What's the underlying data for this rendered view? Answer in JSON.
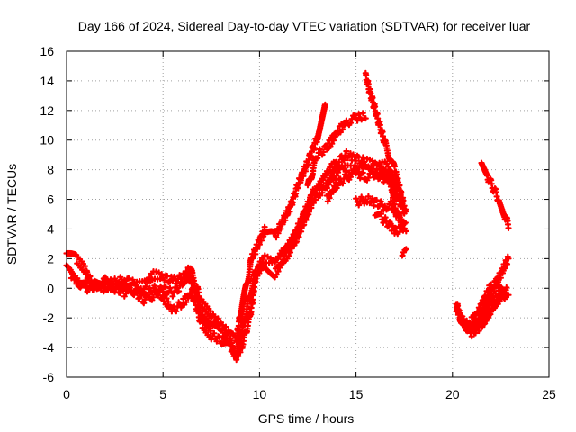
{
  "chart_data": {
    "type": "scatter",
    "title": "Day 166 of 2024, Sidereal Day-to-day VTEC variation (SDTVAR) for receiver luar",
    "xlabel": "GPS time / hours",
    "ylabel": "SDTVAR / TECUs",
    "xlim": [
      0,
      25
    ],
    "ylim": [
      -6,
      16
    ],
    "x_ticks": [
      "0",
      "5",
      "10",
      "15",
      "20",
      "25"
    ],
    "y_ticks": [
      "-6",
      "-4",
      "-2",
      "0",
      "2",
      "4",
      "6",
      "8",
      "10",
      "12",
      "14",
      "16"
    ],
    "grid": true,
    "legend": "none",
    "marker": "plus",
    "color": "#ff0000",
    "series": [
      {
        "values": [
          [
            0.0,
            2.4
          ],
          [
            0.5,
            2.0
          ],
          [
            1.0,
            1.2
          ],
          [
            1.1,
            0.7
          ],
          [
            1.5,
            0.2
          ],
          [
            2.0,
            0.3
          ],
          [
            2.5,
            0.4
          ],
          [
            3.0,
            0.6
          ],
          [
            3.5,
            0.3
          ],
          [
            4.0,
            0.2
          ],
          [
            4.5,
            0.9
          ],
          [
            5.0,
            0.8
          ],
          [
            5.5,
            0.5
          ],
          [
            6.0,
            0.7
          ],
          [
            6.4,
            1.3
          ],
          [
            6.7,
            0.2
          ],
          [
            7.0,
            -1.0
          ],
          [
            7.5,
            -1.8
          ],
          [
            8.0,
            -2.5
          ],
          [
            8.5,
            -3.2
          ],
          [
            8.8,
            -3.5
          ],
          [
            9.0,
            -1.8
          ],
          [
            9.3,
            0.0
          ],
          [
            9.6,
            2.0
          ],
          [
            10.0,
            3.2
          ],
          [
            10.3,
            4.0
          ],
          [
            10.8,
            3.5
          ],
          [
            11.2,
            4.5
          ],
          [
            11.6,
            5.5
          ],
          [
            12.0,
            7.0
          ],
          [
            12.5,
            8.5
          ],
          [
            13.0,
            10.2
          ],
          [
            13.4,
            12.5
          ]
        ]
      },
      {
        "values": [
          [
            0.0,
            1.3
          ],
          [
            0.5,
            0.8
          ],
          [
            1.0,
            0.3
          ],
          [
            1.5,
            0.1
          ],
          [
            2.0,
            0.0
          ],
          [
            2.5,
            0.1
          ],
          [
            3.0,
            0.2
          ],
          [
            3.5,
            -0.2
          ],
          [
            4.0,
            -0.8
          ],
          [
            4.5,
            -0.5
          ],
          [
            5.0,
            0.0
          ],
          [
            5.5,
            -0.3
          ],
          [
            6.0,
            0.2
          ],
          [
            6.4,
            0.9
          ],
          [
            6.7,
            -0.5
          ],
          [
            7.0,
            -1.8
          ],
          [
            7.5,
            -2.6
          ],
          [
            8.0,
            -3.0
          ],
          [
            8.5,
            -3.6
          ],
          [
            8.8,
            -4.5
          ],
          [
            9.1,
            -3.0
          ],
          [
            9.4,
            -1.0
          ],
          [
            9.8,
            1.0
          ],
          [
            10.2,
            2.0
          ],
          [
            10.8,
            1.8
          ],
          [
            11.2,
            2.5
          ],
          [
            11.8,
            3.5
          ],
          [
            12.3,
            5.0
          ],
          [
            12.8,
            6.5
          ],
          [
            13.5,
            7.8
          ],
          [
            14.0,
            8.5
          ],
          [
            14.5,
            9.0
          ],
          [
            15.0,
            8.8
          ],
          [
            15.5,
            8.5
          ],
          [
            16.0,
            8.4
          ],
          [
            16.5,
            8.3
          ],
          [
            16.8,
            7.8
          ],
          [
            17.2,
            6.0
          ],
          [
            17.6,
            5.0
          ]
        ]
      },
      {
        "values": [
          [
            0.2,
            1.0
          ],
          [
            0.6,
            0.4
          ],
          [
            1.0,
            0.0
          ],
          [
            1.5,
            0.2
          ],
          [
            2.0,
            0.5
          ],
          [
            2.5,
            0.0
          ],
          [
            3.0,
            -0.3
          ],
          [
            3.5,
            0.0
          ],
          [
            4.0,
            -0.5
          ],
          [
            4.5,
            0.0
          ],
          [
            5.0,
            -0.6
          ],
          [
            5.5,
            -1.5
          ],
          [
            6.0,
            -1.0
          ],
          [
            6.5,
            -0.3
          ],
          [
            7.0,
            -2.4
          ],
          [
            7.5,
            -3.2
          ],
          [
            8.0,
            -3.5
          ],
          [
            8.5,
            -4.0
          ],
          [
            8.8,
            -4.6
          ],
          [
            9.1,
            -3.8
          ],
          [
            9.5,
            -2.0
          ],
          [
            9.8,
            0.8
          ],
          [
            10.2,
            1.5
          ],
          [
            10.8,
            1.0
          ],
          [
            11.3,
            2.0
          ],
          [
            11.8,
            3.0
          ],
          [
            12.3,
            4.5
          ],
          [
            12.8,
            6.0
          ],
          [
            13.5,
            7.0
          ],
          [
            14.2,
            8.2
          ],
          [
            14.8,
            8.0
          ],
          [
            15.3,
            8.2
          ],
          [
            15.8,
            7.8
          ],
          [
            16.3,
            7.5
          ],
          [
            16.8,
            7.2
          ],
          [
            17.0,
            5.6
          ],
          [
            17.3,
            4.5
          ]
        ]
      },
      {
        "values": [
          [
            12.5,
            6.8
          ],
          [
            13.0,
            9.0
          ],
          [
            13.5,
            9.5
          ],
          [
            14.0,
            10.5
          ],
          [
            14.5,
            11.2
          ],
          [
            15.0,
            11.5
          ],
          [
            15.5,
            11.6
          ]
        ]
      },
      {
        "values": [
          [
            13.5,
            6.0
          ],
          [
            14.0,
            7.0
          ],
          [
            14.5,
            7.5
          ],
          [
            15.0,
            7.8
          ],
          [
            15.5,
            7.5
          ],
          [
            16.0,
            7.8
          ],
          [
            16.5,
            7.7
          ],
          [
            16.9,
            7.2
          ]
        ]
      },
      {
        "values": [
          [
            15.0,
            5.8
          ],
          [
            15.5,
            6.0
          ],
          [
            16.0,
            5.8
          ],
          [
            16.5,
            5.5
          ],
          [
            16.8,
            5.6
          ],
          [
            17.2,
            4.8
          ],
          [
            17.6,
            4.1
          ]
        ]
      },
      {
        "values": [
          [
            15.5,
            14.3
          ],
          [
            16.0,
            12.0
          ],
          [
            16.5,
            9.8
          ],
          [
            17.0,
            8.0
          ],
          [
            17.5,
            5.5
          ]
        ]
      },
      {
        "values": [
          [
            16.0,
            5.0
          ],
          [
            16.3,
            4.8
          ],
          [
            16.8,
            4.2
          ],
          [
            17.1,
            3.8
          ],
          [
            17.5,
            4.2
          ]
        ]
      },
      {
        "values": [
          [
            17.4,
            2.2
          ],
          [
            17.6,
            2.4
          ]
        ]
      },
      {
        "values": [
          [
            20.2,
            -1.0
          ],
          [
            20.4,
            -2.0
          ],
          [
            20.8,
            -2.5
          ],
          [
            21.2,
            -2.8
          ],
          [
            21.6,
            -2.4
          ],
          [
            22.0,
            -1.5
          ],
          [
            22.4,
            -0.8
          ],
          [
            22.7,
            -0.4
          ],
          [
            22.9,
            -0.3
          ]
        ]
      },
      {
        "values": [
          [
            20.2,
            -1.4
          ],
          [
            20.6,
            -2.5
          ],
          [
            21.0,
            -3.0
          ],
          [
            21.4,
            -2.2
          ],
          [
            21.8,
            -1.0
          ],
          [
            22.2,
            0.2
          ],
          [
            22.6,
            1.2
          ],
          [
            22.9,
            2.0
          ]
        ]
      },
      {
        "values": [
          [
            20.4,
            -2.0
          ],
          [
            20.8,
            -2.8
          ],
          [
            21.2,
            -2.6
          ],
          [
            21.6,
            -1.8
          ],
          [
            22.0,
            -0.8
          ],
          [
            22.4,
            -0.4
          ],
          [
            22.8,
            -0.2
          ]
        ]
      },
      {
        "values": [
          [
            21.0,
            -2.2
          ],
          [
            21.5,
            -1.2
          ],
          [
            22.0,
            0.2
          ],
          [
            22.4,
            0.5
          ],
          [
            22.7,
            -0.5
          ]
        ]
      },
      {
        "values": [
          [
            21.5,
            8.6
          ],
          [
            21.8,
            7.6
          ],
          [
            22.1,
            6.8
          ],
          [
            22.4,
            6.0
          ],
          [
            22.7,
            5.0
          ],
          [
            22.9,
            4.2
          ]
        ]
      }
    ]
  }
}
